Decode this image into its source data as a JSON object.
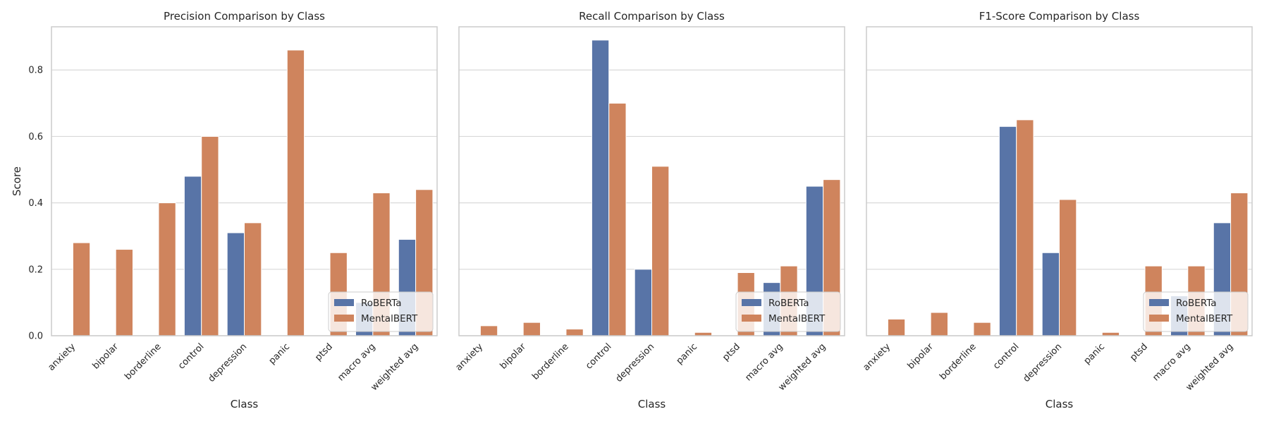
{
  "chart_data": [
    {
      "type": "bar",
      "title": "Precision Comparison by Class",
      "xlabel": "Class",
      "ylabel": "Score",
      "categories": [
        "anxiety",
        "bipolar",
        "borderline",
        "control",
        "depression",
        "panic",
        "ptsd",
        "macro avg",
        "weighted avg"
      ],
      "series": [
        {
          "name": "RoBERTa",
          "values": [
            0.0,
            0.0,
            0.0,
            0.48,
            0.31,
            0.0,
            0.0,
            0.1,
            0.29
          ]
        },
        {
          "name": "MentalBERT",
          "values": [
            0.28,
            0.26,
            0.4,
            0.6,
            0.34,
            0.86,
            0.25,
            0.43,
            0.44
          ]
        }
      ],
      "ylim": [
        0,
        0.93
      ],
      "yticks": [
        "0.0",
        "0.2",
        "0.4",
        "0.6",
        "0.8"
      ],
      "grid": true,
      "legend": "lower right"
    },
    {
      "type": "bar",
      "title": "Recall Comparison by Class",
      "xlabel": "Class",
      "ylabel": "",
      "categories": [
        "anxiety",
        "bipolar",
        "borderline",
        "control",
        "depression",
        "panic",
        "ptsd",
        "macro avg",
        "weighted avg"
      ],
      "series": [
        {
          "name": "RoBERTa",
          "values": [
            0.0,
            0.0,
            0.0,
            0.89,
            0.2,
            0.0,
            0.0,
            0.16,
            0.45
          ]
        },
        {
          "name": "MentalBERT",
          "values": [
            0.03,
            0.04,
            0.02,
            0.7,
            0.51,
            0.01,
            0.19,
            0.21,
            0.47
          ]
        }
      ],
      "ylim": [
        0,
        0.93
      ],
      "grid": true,
      "legend": "lower right"
    },
    {
      "type": "bar",
      "title": "F1-Score Comparison by Class",
      "xlabel": "Class",
      "ylabel": "",
      "categories": [
        "anxiety",
        "bipolar",
        "borderline",
        "control",
        "depression",
        "panic",
        "ptsd",
        "macro avg",
        "weighted avg"
      ],
      "series": [
        {
          "name": "RoBERTa",
          "values": [
            0.0,
            0.0,
            0.0,
            0.63,
            0.25,
            0.0,
            0.0,
            0.12,
            0.34
          ]
        },
        {
          "name": "MentalBERT",
          "values": [
            0.05,
            0.07,
            0.04,
            0.65,
            0.41,
            0.01,
            0.21,
            0.21,
            0.43
          ]
        }
      ],
      "ylim": [
        0,
        0.93
      ],
      "grid": true,
      "legend": "lower right"
    }
  ],
  "colors": {
    "RoBERTa": "#5874a7",
    "MentalBERT": "#cf845d",
    "grid": "#d9d9d9",
    "frame": "#cccccc"
  }
}
